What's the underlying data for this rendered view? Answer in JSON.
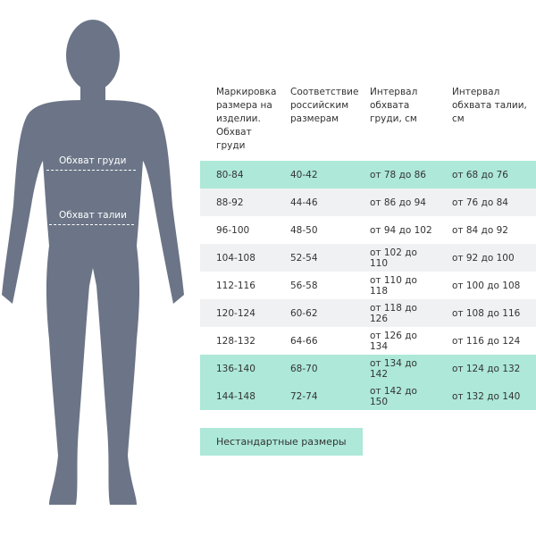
{
  "figure": {
    "chest_label": "Обхват груди",
    "waist_label": "Обхват талии",
    "color": "#6b7587"
  },
  "table": {
    "headers": [
      "Маркировка размера на изделии. Обхват груди",
      "Соответствие российским размерам",
      "Интервал обхвата груди, см",
      "Интервал обхвата талии, см"
    ],
    "rows": [
      {
        "style": "green",
        "cells": [
          "80-84",
          "40-42",
          "от 78 до 86",
          "от 68 до 76"
        ]
      },
      {
        "style": "gray",
        "cells": [
          "88-92",
          "44-46",
          "от 86 до 94",
          "от 76 до 84"
        ]
      },
      {
        "style": "white",
        "cells": [
          "96-100",
          "48-50",
          "от 94 до 102",
          "от 84 до 92"
        ]
      },
      {
        "style": "gray",
        "cells": [
          "104-108",
          "52-54",
          "от 102 до 110",
          "от 92 до 100"
        ]
      },
      {
        "style": "white",
        "cells": [
          "112-116",
          "56-58",
          "от 110 до 118",
          "от 100 до 108"
        ]
      },
      {
        "style": "gray",
        "cells": [
          "120-124",
          "60-62",
          "от 118 до 126",
          "от 108 до 116"
        ]
      },
      {
        "style": "white",
        "cells": [
          "128-132",
          "64-66",
          "от 126 до 134",
          "от 116 до 124"
        ]
      },
      {
        "style": "green",
        "cells": [
          "136-140",
          "68-70",
          "от 134 до 142",
          "от 124 до 132"
        ]
      },
      {
        "style": "green",
        "cells": [
          "144-148",
          "72-74",
          "от 142 до 150",
          "от 132 до 140"
        ]
      }
    ],
    "highlight_color": "#ade8d8"
  },
  "nonstandard_button": "Нестандартные размеры"
}
